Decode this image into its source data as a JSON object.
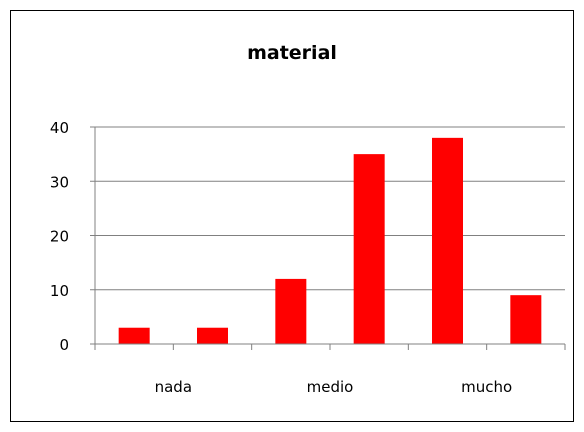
{
  "chart_data": {
    "type": "bar",
    "title": "material",
    "xlabel": "",
    "ylabel": "",
    "categories": [
      "nada",
      "",
      "medio",
      "",
      "mucho",
      ""
    ],
    "values": [
      3,
      3,
      12,
      35,
      38,
      9
    ],
    "ylim": [
      0,
      40
    ],
    "yticks": [
      0,
      10,
      20,
      30,
      40
    ],
    "grid": true,
    "legend": "none",
    "bar_color": "#ff0000"
  }
}
